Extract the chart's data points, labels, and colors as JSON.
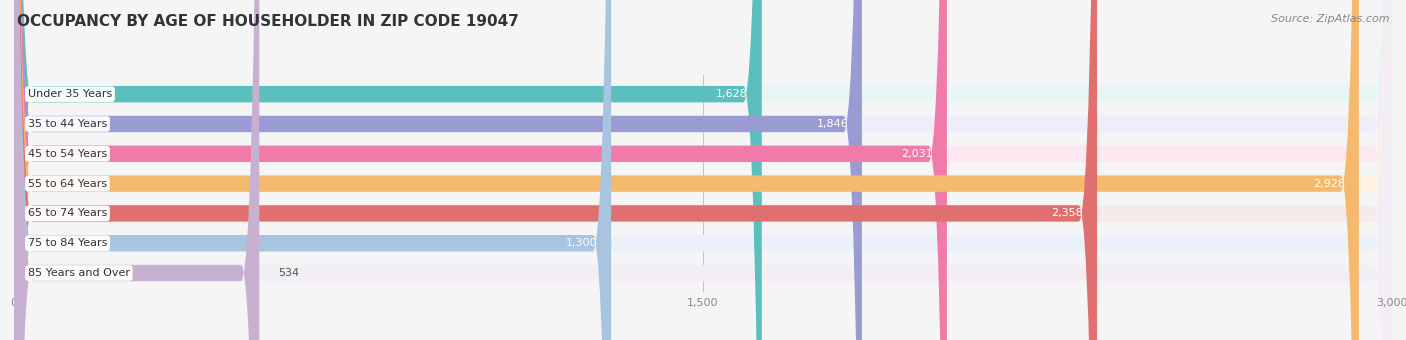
{
  "title": "OCCUPANCY BY AGE OF HOUSEHOLDER IN ZIP CODE 19047",
  "source": "Source: ZipAtlas.com",
  "categories": [
    "Under 35 Years",
    "35 to 44 Years",
    "45 to 54 Years",
    "55 to 64 Years",
    "65 to 74 Years",
    "75 to 84 Years",
    "85 Years and Over"
  ],
  "values": [
    1628,
    1846,
    2031,
    2928,
    2358,
    1300,
    534
  ],
  "bar_colors": [
    "#5BBFBF",
    "#9B9BD4",
    "#F07BAA",
    "#F5B96E",
    "#E07070",
    "#A8C4E0",
    "#C8B0D0"
  ],
  "bar_bg_colors": [
    "#E8F5F5",
    "#EEEEF8",
    "#FDE8F2",
    "#FDF2E4",
    "#F9EAEA",
    "#EAF1F9",
    "#F3EEF5"
  ],
  "xlim": [
    0,
    3000
  ],
  "xticks": [
    0,
    1500,
    3000
  ],
  "xtick_labels": [
    "0",
    "1,500",
    "3,000"
  ],
  "title_fontsize": 11,
  "source_fontsize": 8,
  "label_fontsize": 8,
  "bar_label_fontsize": 8,
  "tick_fontsize": 8,
  "background_color": "#f5f5f5",
  "bar_height": 0.55
}
